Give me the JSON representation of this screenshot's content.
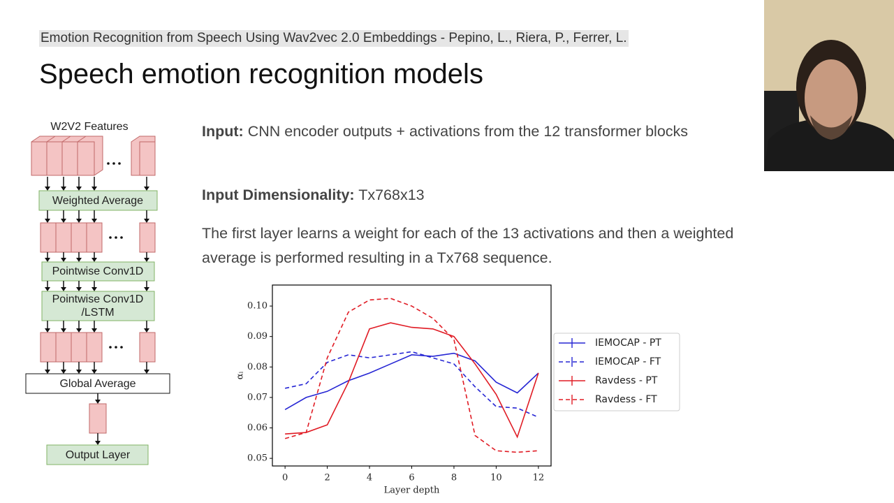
{
  "citation": "Emotion Recognition from Speech Using Wav2vec 2.0 Embeddings - Pepino, L., Riera, P., Ferrer, L.",
  "title": "Speech emotion recognition models",
  "diagram": {
    "nodes": [
      "W2V2 Features",
      "Weighted Average",
      "Pointwise Conv1D",
      [
        "Pointwise Conv1D",
        "/LSTM"
      ],
      "Global Average",
      "Output Layer"
    ]
  },
  "paragraphs": [
    {
      "label": "Input:",
      "text": "CNN encoder outputs + activations from the 12 transformer blocks"
    },
    {
      "label": "Input Dimensionality:",
      "text": "Tx768x13"
    },
    {
      "text": "The first layer learns a weight for each of the 13 activations and then a weighted average is performed resulting in a Tx768 sequence."
    }
  ],
  "chart_data": {
    "type": "line",
    "xlabel": "Layer depth",
    "ylabel": "αᵢ",
    "x": [
      0,
      1,
      2,
      3,
      4,
      5,
      6,
      7,
      8,
      9,
      10,
      11,
      12
    ],
    "xlim": [
      -0.6,
      12.6
    ],
    "xticks": [
      0,
      2,
      4,
      6,
      8,
      10,
      12
    ],
    "ylim": [
      0.0475,
      0.1069
    ],
    "yticks": [
      0.05,
      0.06,
      0.07,
      0.08,
      0.09,
      {
        "value": 0.1,
        "label": "0.10"
      }
    ],
    "legend": "outside right",
    "series": [
      {
        "name": "IEMOCAP - PT",
        "color": "#2626d4",
        "linestyle": "solid",
        "values": [
          0.066,
          0.07,
          0.072,
          0.0755,
          0.078,
          0.081,
          0.084,
          0.0835,
          0.0845,
          0.082,
          0.075,
          0.0715,
          0.078
        ]
      },
      {
        "name": "IEMOCAP - FT",
        "color": "#2626d4",
        "linestyle": "dashed",
        "values": [
          0.073,
          0.0745,
          0.0815,
          0.084,
          0.083,
          0.084,
          0.085,
          0.083,
          0.081,
          0.0735,
          0.067,
          0.0665,
          0.0635
        ]
      },
      {
        "name": "Ravdess - PT",
        "color": "#e01b24",
        "linestyle": "solid",
        "values": [
          0.058,
          0.0585,
          0.061,
          0.075,
          0.0925,
          0.0945,
          0.093,
          0.0925,
          0.09,
          0.081,
          0.071,
          0.057,
          0.078
        ]
      },
      {
        "name": "Ravdess - FT",
        "color": "#e01b24",
        "linestyle": "dashed",
        "values": [
          0.0565,
          0.0585,
          0.083,
          0.098,
          0.102,
          0.1025,
          0.1,
          0.096,
          0.089,
          0.0575,
          0.0525,
          0.052,
          0.0525
        ]
      }
    ]
  }
}
